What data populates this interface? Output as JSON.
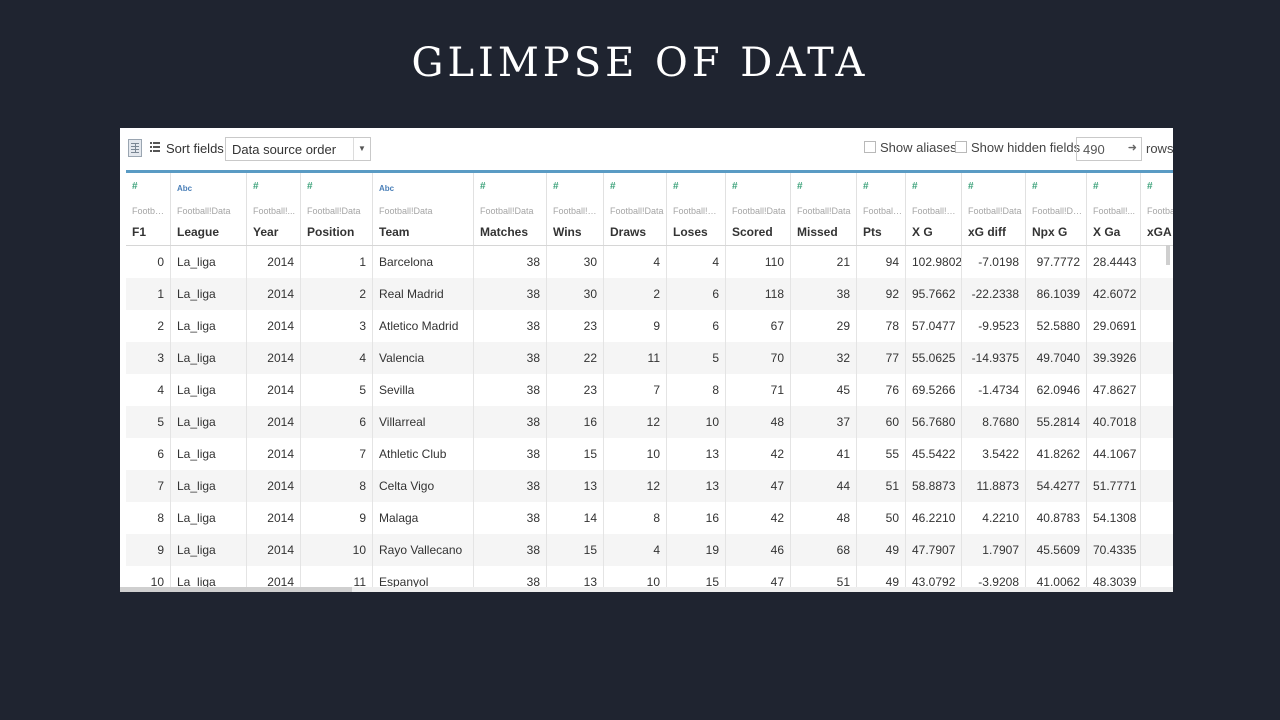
{
  "slide": {
    "title": "GLIMPSE OF DATA"
  },
  "toolbar": {
    "sort_label": "Sort fields",
    "sort_value": "Data source order",
    "show_aliases_label": "Show aliases",
    "show_hidden_label": "Show hidden fields",
    "rows_value": "490",
    "rows_label": "rows"
  },
  "icons": [
    "grid-view-icon",
    "list-view-icon",
    "dropdown-arrow-icon",
    "rows-go-icon"
  ],
  "colors": {
    "background": "#1f2430",
    "accent": "#5a9bc4",
    "number_type": "#3fa37c",
    "text_type": "#4a7fb8"
  },
  "columns": [
    {
      "type": "#",
      "source": "Footbal...",
      "name": "F1"
    },
    {
      "type": "Abc",
      "source": "Football!Data",
      "name": "League"
    },
    {
      "type": "#",
      "source": "Football!...",
      "name": "Year"
    },
    {
      "type": "#",
      "source": "Football!Data",
      "name": "Position"
    },
    {
      "type": "Abc",
      "source": "Football!Data",
      "name": "Team"
    },
    {
      "type": "#",
      "source": "Football!Data",
      "name": "Matches"
    },
    {
      "type": "#",
      "source": "Football!D...",
      "name": "Wins"
    },
    {
      "type": "#",
      "source": "Football!Data",
      "name": "Draws"
    },
    {
      "type": "#",
      "source": "Football!Da...",
      "name": "Loses"
    },
    {
      "type": "#",
      "source": "Football!Data",
      "name": "Scored"
    },
    {
      "type": "#",
      "source": "Football!Data",
      "name": "Missed"
    },
    {
      "type": "#",
      "source": "Football!...",
      "name": "Pts"
    },
    {
      "type": "#",
      "source": "Football!D...",
      "name": "X G"
    },
    {
      "type": "#",
      "source": "Football!Data",
      "name": "xG diff"
    },
    {
      "type": "#",
      "source": "Football!Data",
      "name": "Npx G"
    },
    {
      "type": "#",
      "source": "Football!...",
      "name": "X Ga"
    },
    {
      "type": "#",
      "source": "Footba",
      "name": "xGA d"
    }
  ],
  "rows": [
    [
      "0",
      "La_liga",
      "2014",
      "1",
      "Barcelona",
      "38",
      "30",
      "4",
      "4",
      "110",
      "21",
      "94",
      "102.9802",
      "-7.0198",
      "97.7772",
      "28.4443",
      ""
    ],
    [
      "1",
      "La_liga",
      "2014",
      "2",
      "Real Madrid",
      "38",
      "30",
      "2",
      "6",
      "118",
      "38",
      "92",
      "95.7662",
      "-22.2338",
      "86.1039",
      "42.6072",
      ""
    ],
    [
      "2",
      "La_liga",
      "2014",
      "3",
      "Atletico Madrid",
      "38",
      "23",
      "9",
      "6",
      "67",
      "29",
      "78",
      "57.0477",
      "-9.9523",
      "52.5880",
      "29.0691",
      ""
    ],
    [
      "3",
      "La_liga",
      "2014",
      "4",
      "Valencia",
      "38",
      "22",
      "11",
      "5",
      "70",
      "32",
      "77",
      "55.0625",
      "-14.9375",
      "49.7040",
      "39.3926",
      ""
    ],
    [
      "4",
      "La_liga",
      "2014",
      "5",
      "Sevilla",
      "38",
      "23",
      "7",
      "8",
      "71",
      "45",
      "76",
      "69.5266",
      "-1.4734",
      "62.0946",
      "47.8627",
      ""
    ],
    [
      "5",
      "La_liga",
      "2014",
      "6",
      "Villarreal",
      "38",
      "16",
      "12",
      "10",
      "48",
      "37",
      "60",
      "56.7680",
      "8.7680",
      "55.2814",
      "40.7018",
      ""
    ],
    [
      "6",
      "La_liga",
      "2014",
      "7",
      "Athletic Club",
      "38",
      "15",
      "10",
      "13",
      "42",
      "41",
      "55",
      "45.5422",
      "3.5422",
      "41.8262",
      "44.1067",
      ""
    ],
    [
      "7",
      "La_liga",
      "2014",
      "8",
      "Celta Vigo",
      "38",
      "13",
      "12",
      "13",
      "47",
      "44",
      "51",
      "58.8873",
      "11.8873",
      "54.4277",
      "51.7771",
      ""
    ],
    [
      "8",
      "La_liga",
      "2014",
      "9",
      "Malaga",
      "38",
      "14",
      "8",
      "16",
      "42",
      "48",
      "50",
      "46.2210",
      "4.2210",
      "40.8783",
      "54.1308",
      ""
    ],
    [
      "9",
      "La_liga",
      "2014",
      "10",
      "Rayo Vallecano",
      "38",
      "15",
      "4",
      "19",
      "46",
      "68",
      "49",
      "47.7907",
      "1.7907",
      "45.5609",
      "70.4335",
      ""
    ],
    [
      "10",
      "La_liga",
      "2014",
      "11",
      "Espanyol",
      "38",
      "13",
      "10",
      "15",
      "47",
      "51",
      "49",
      "43.0792",
      "-3.9208",
      "41.0062",
      "48.3039",
      ""
    ]
  ]
}
